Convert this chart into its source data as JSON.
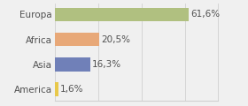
{
  "categories": [
    "America",
    "Asia",
    "Africa",
    "Europa"
  ],
  "values": [
    1.6,
    16.3,
    20.5,
    61.6
  ],
  "labels": [
    "1,6%",
    "16,3%",
    "20,5%",
    "61,6%"
  ],
  "bar_colors": [
    "#e8c84a",
    "#7080b8",
    "#e8a878",
    "#b0c080"
  ],
  "background_color": "#f0f0f0",
  "xlim": [
    0,
    75
  ],
  "bar_height": 0.55,
  "label_fontsize": 7.5,
  "tick_fontsize": 7.5,
  "grid_color": "#d0d0d0",
  "text_color": "#505050"
}
